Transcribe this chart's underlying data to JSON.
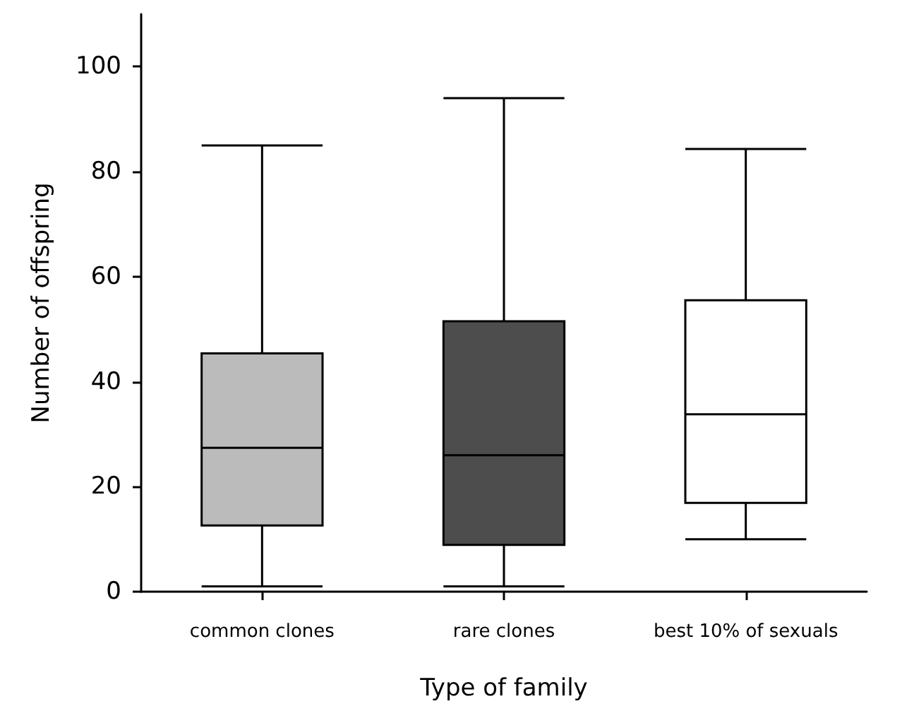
{
  "chart_data": {
    "type": "box",
    "xlabel": "Type of family",
    "ylabel": "Number of offspring",
    "categories": [
      "common clones",
      "rare clones",
      "best 10% of sexuals"
    ],
    "colors": [
      "#bbbbbb",
      "#4d4d4d",
      "#ffffff"
    ],
    "boxes": [
      {
        "low": 1,
        "q1": 12.6,
        "median": 27.4,
        "q3": 45.4,
        "high": 85
      },
      {
        "low": 1,
        "q1": 8.9,
        "median": 26,
        "q3": 51.5,
        "high": 94
      },
      {
        "low": 10,
        "q1": 16.9,
        "median": 33.8,
        "q3": 55.5,
        "high": 84.3
      }
    ],
    "ylim": [
      0,
      110
    ],
    "yticks": [
      0,
      20,
      40,
      60,
      80,
      100
    ]
  }
}
